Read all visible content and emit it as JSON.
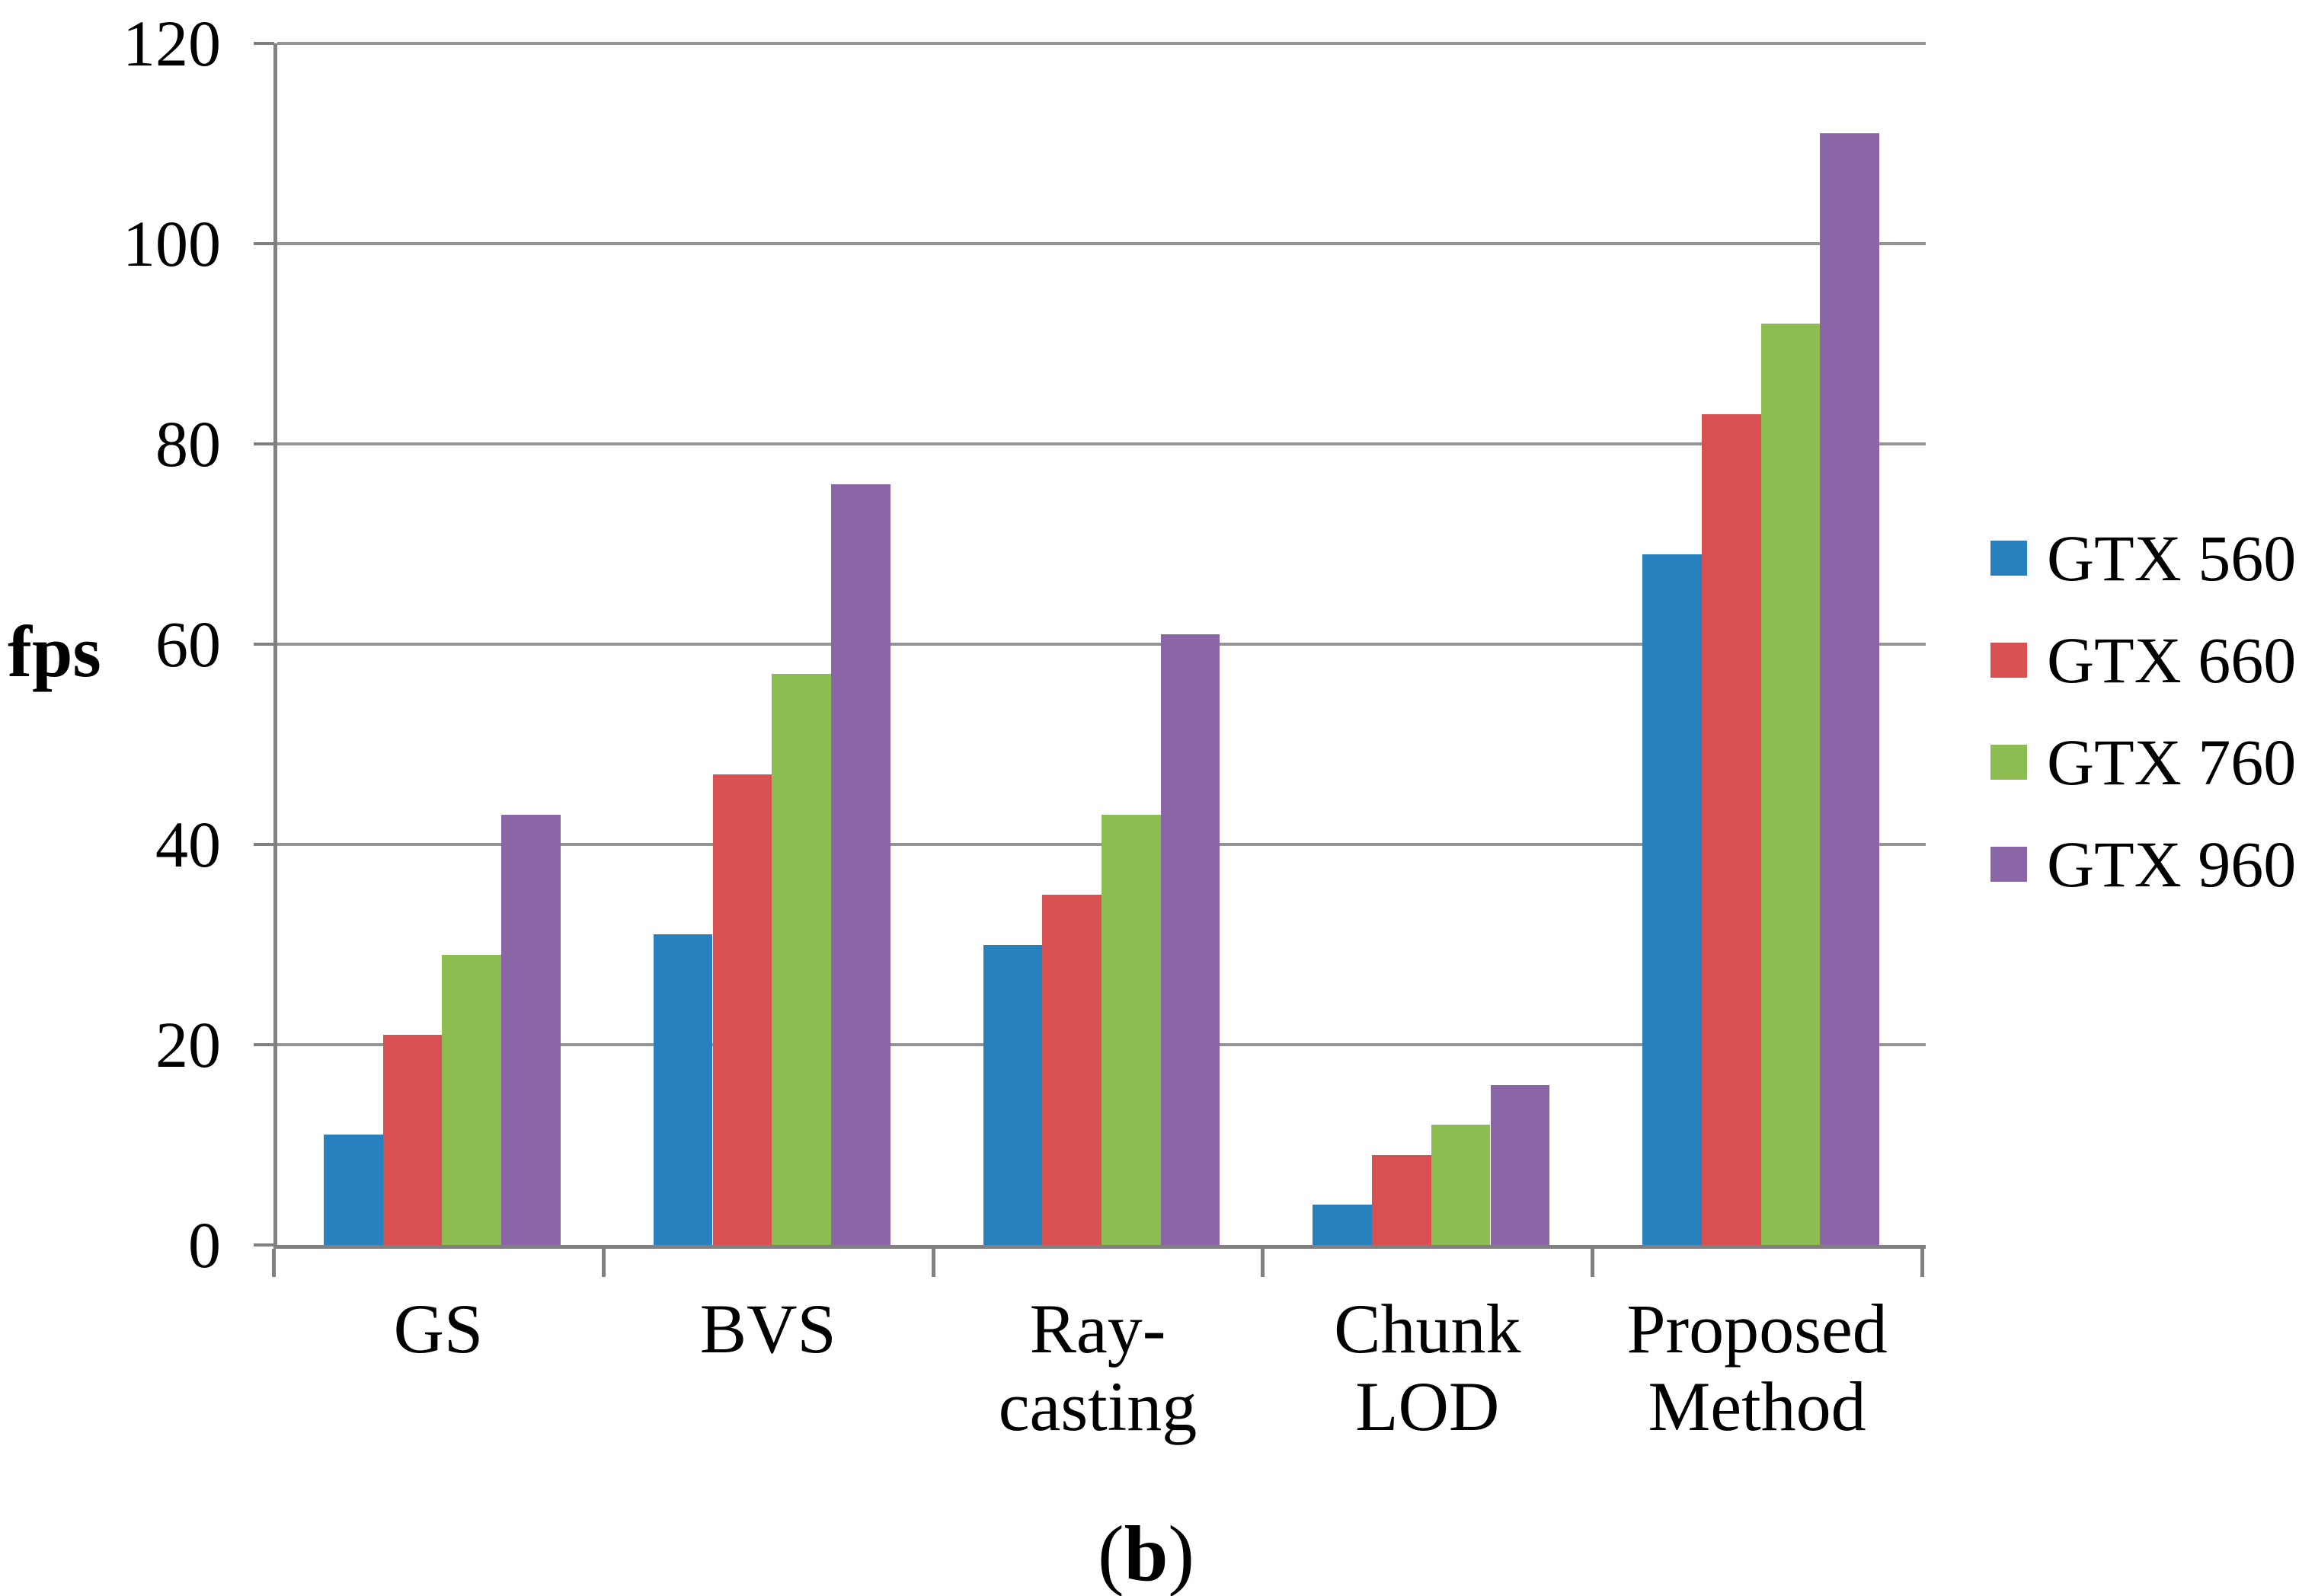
{
  "figure": {
    "caption": {
      "open": "(",
      "letter": "b",
      "close": ")"
    }
  },
  "chart_data": {
    "type": "bar",
    "title": "",
    "xlabel": "",
    "ylabel": "fps",
    "categories": [
      "GS",
      "BVS",
      "Ray-casting",
      "Chunk LOD",
      "Proposed Method"
    ],
    "category_lines": [
      [
        "GS"
      ],
      [
        "BVS"
      ],
      [
        "Ray-casting"
      ],
      [
        "Chunk",
        "LOD"
      ],
      [
        "Proposed",
        "Method"
      ]
    ],
    "series": [
      {
        "name": "GTX 560",
        "color": "#2681BE",
        "values": [
          11,
          31,
          30,
          4,
          69
        ]
      },
      {
        "name": "GTX 660",
        "color": "#D95052",
        "values": [
          21,
          47,
          35,
          9,
          83
        ]
      },
      {
        "name": "GTX 760",
        "color": "#8DBC51",
        "values": [
          29,
          57,
          43,
          12,
          92
        ]
      },
      {
        "name": "GTX 960",
        "color": "#8A66A7",
        "values": [
          43,
          76,
          61,
          16,
          111
        ]
      }
    ],
    "ylim": [
      0,
      120
    ],
    "yticks": [
      0,
      20,
      40,
      60,
      80,
      100,
      120
    ],
    "grid": true,
    "legend_position": "right",
    "axis_color": "#808080",
    "grid_color": "#949494"
  }
}
